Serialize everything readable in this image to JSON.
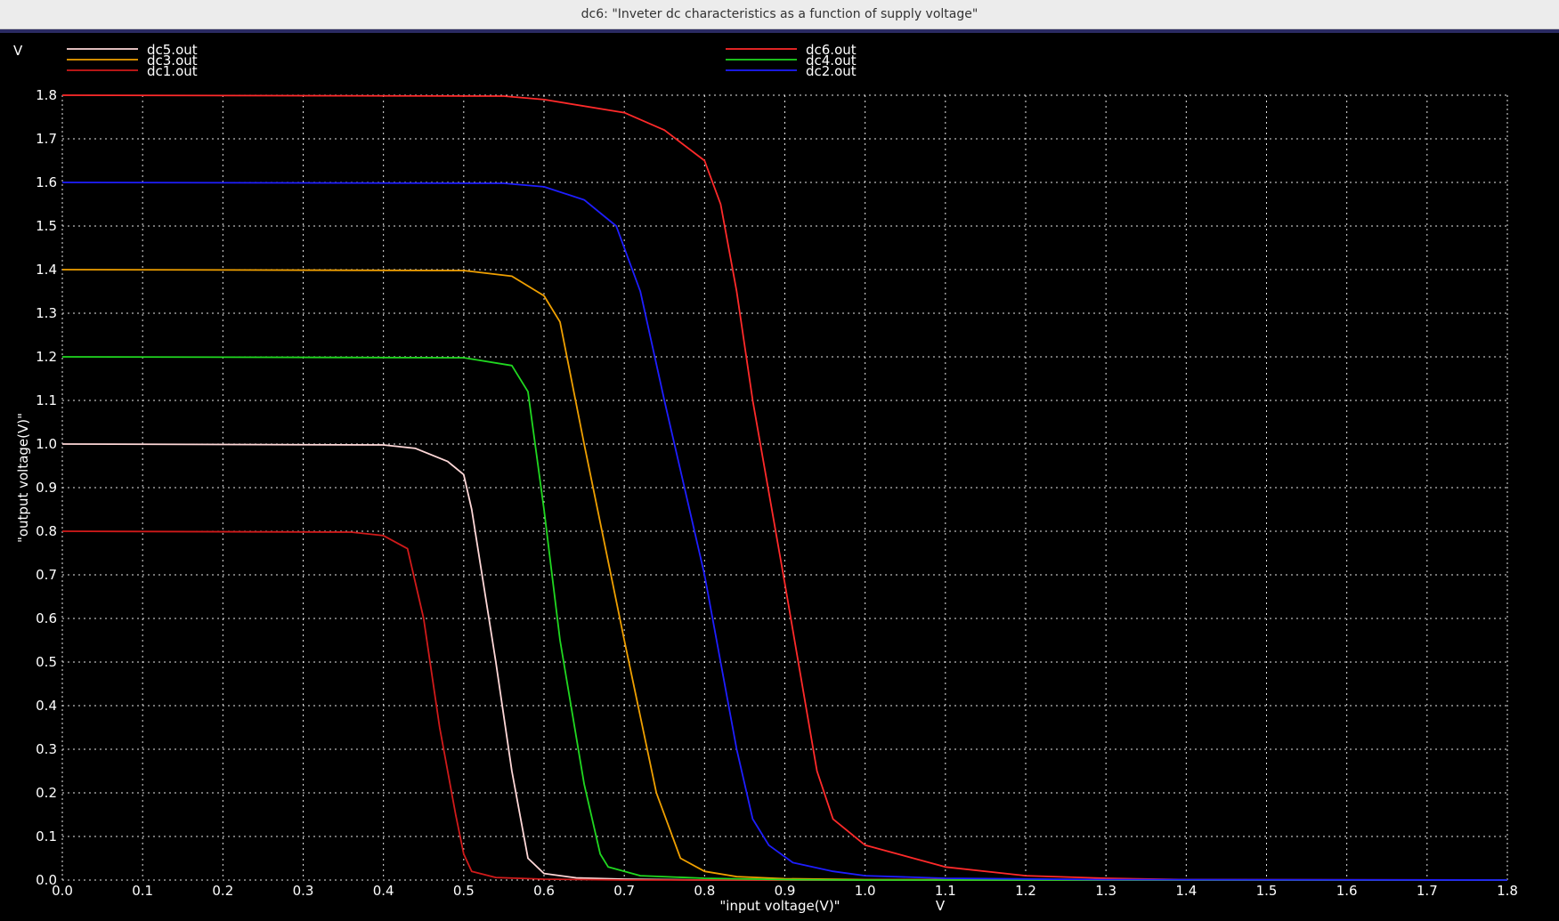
{
  "window": {
    "title": "dc6: \"Inveter dc characteristics as a function of supply voltage\""
  },
  "colors": {
    "background": "#000000",
    "grid": "#ffffff",
    "text": "#ffffff"
  },
  "chart_data": {
    "type": "line",
    "title": "",
    "xlabel": "\"input voltage(V)\"",
    "ylabel": "\"output voltage(V)\"",
    "x_unit": "V",
    "y_unit": "V",
    "xlim": [
      0,
      1.8
    ],
    "ylim": [
      0,
      1.8
    ],
    "x_ticks": [
      "0.0",
      "0.1",
      "0.2",
      "0.3",
      "0.4",
      "0.5",
      "0.6",
      "0.7",
      "0.8",
      "0.9",
      "1.0",
      "1.1",
      "1.2",
      "1.3",
      "1.4",
      "1.5",
      "1.6",
      "1.7",
      "1.8"
    ],
    "y_ticks": [
      "0.0",
      "0.1",
      "0.2",
      "0.3",
      "0.4",
      "0.5",
      "0.6",
      "0.7",
      "0.8",
      "0.9",
      "1.0",
      "1.1",
      "1.2",
      "1.3",
      "1.4",
      "1.5",
      "1.6",
      "1.7",
      "1.8"
    ],
    "grid": true,
    "legend": "top",
    "series": [
      {
        "name": "dc5.out",
        "color": "#ffd8d8",
        "x": [
          0,
          0.4,
          0.44,
          0.48,
          0.5,
          0.51,
          0.54,
          0.56,
          0.58,
          0.6,
          0.64,
          0.7,
          0.8,
          1.8
        ],
        "y": [
          1.0,
          0.998,
          0.99,
          0.96,
          0.93,
          0.85,
          0.5,
          0.25,
          0.05,
          0.015,
          0.005,
          0.002,
          0.0,
          0.0
        ]
      },
      {
        "name": "dc3.out",
        "color": "#f0a000",
        "x": [
          0,
          0.5,
          0.56,
          0.6,
          0.62,
          0.65,
          0.7,
          0.74,
          0.77,
          0.8,
          0.84,
          0.9,
          1.0,
          1.8
        ],
        "y": [
          1.4,
          1.398,
          1.385,
          1.34,
          1.28,
          1.0,
          0.55,
          0.2,
          0.05,
          0.02,
          0.008,
          0.003,
          0.001,
          0.0
        ]
      },
      {
        "name": "dc1.out",
        "color": "#d01a1a",
        "x": [
          0,
          0.36,
          0.4,
          0.43,
          0.45,
          0.47,
          0.49,
          0.5,
          0.51,
          0.54,
          0.6,
          0.7,
          1.8
        ],
        "y": [
          0.8,
          0.798,
          0.79,
          0.76,
          0.6,
          0.35,
          0.15,
          0.06,
          0.02,
          0.006,
          0.002,
          0.0,
          0.0
        ]
      },
      {
        "name": "dc6.out",
        "color": "#ff2a2a",
        "x": [
          0,
          0.55,
          0.6,
          0.7,
          0.75,
          0.8,
          0.82,
          0.84,
          0.86,
          0.9,
          0.94,
          0.96,
          1.0,
          1.1,
          1.2,
          1.3,
          1.4,
          1.8
        ],
        "y": [
          1.8,
          1.798,
          1.79,
          1.76,
          1.72,
          1.65,
          1.55,
          1.35,
          1.1,
          0.68,
          0.25,
          0.14,
          0.08,
          0.03,
          0.01,
          0.004,
          0.001,
          0.0
        ]
      },
      {
        "name": "dc4.out",
        "color": "#20d820",
        "x": [
          0,
          0.5,
          0.56,
          0.58,
          0.6,
          0.62,
          0.65,
          0.67,
          0.68,
          0.72,
          0.8,
          0.9,
          1.0,
          1.8
        ],
        "y": [
          1.2,
          1.198,
          1.18,
          1.12,
          0.85,
          0.55,
          0.22,
          0.06,
          0.03,
          0.01,
          0.004,
          0.001,
          0.0,
          0.0
        ]
      },
      {
        "name": "dc2.out",
        "color": "#1e1eff",
        "x": [
          0,
          0.55,
          0.6,
          0.65,
          0.69,
          0.72,
          0.75,
          0.8,
          0.84,
          0.86,
          0.88,
          0.91,
          0.96,
          1.0,
          1.1,
          1.3,
          1.8
        ],
        "y": [
          1.6,
          1.598,
          1.59,
          1.56,
          1.5,
          1.35,
          1.1,
          0.7,
          0.3,
          0.14,
          0.08,
          0.04,
          0.02,
          0.01,
          0.004,
          0.001,
          0.0
        ]
      }
    ]
  }
}
